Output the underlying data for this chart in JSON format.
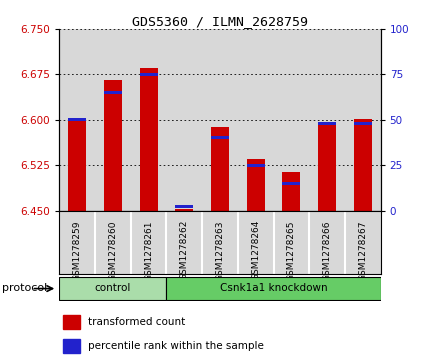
{
  "title": "GDS5360 / ILMN_2628759",
  "samples": [
    "GSM1278259",
    "GSM1278260",
    "GSM1278261",
    "GSM1278262",
    "GSM1278263",
    "GSM1278264",
    "GSM1278265",
    "GSM1278266",
    "GSM1278267"
  ],
  "red_values": [
    6.602,
    6.665,
    6.685,
    6.453,
    6.588,
    6.535,
    6.513,
    6.597,
    6.601
  ],
  "blue_values_pct": [
    50,
    65,
    75,
    2,
    40,
    25,
    15,
    48,
    48
  ],
  "ylim_left": [
    6.45,
    6.75
  ],
  "ylim_right": [
    0,
    100
  ],
  "yticks_left": [
    6.45,
    6.525,
    6.6,
    6.675,
    6.75
  ],
  "yticks_right": [
    0,
    25,
    50,
    75,
    100
  ],
  "red_color": "#cc0000",
  "blue_color": "#2222cc",
  "protocol_groups": [
    {
      "label": "control",
      "start": 0,
      "end": 3,
      "color": "#aaddaa"
    },
    {
      "label": "Csnk1a1 knockdown",
      "start": 3,
      "end": 9,
      "color": "#66cc66"
    }
  ],
  "protocol_label": "protocol",
  "legend_items": [
    {
      "color": "#cc0000",
      "label": "transformed count"
    },
    {
      "color": "#2222cc",
      "label": "percentile rank within the sample"
    }
  ],
  "sample_bg": "#d8d8d8",
  "plot_bg": "#ffffff",
  "bar_width": 0.5
}
